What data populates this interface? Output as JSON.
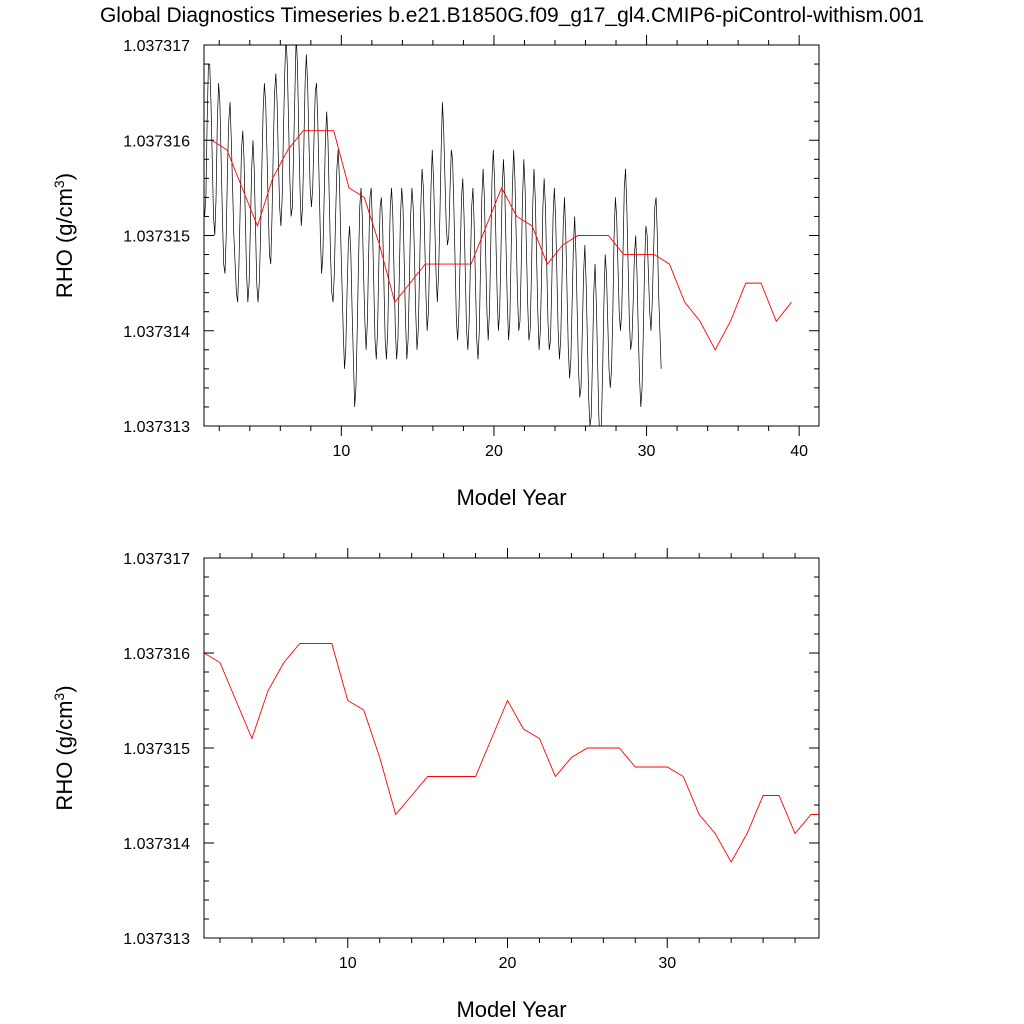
{
  "title": "Global Diagnostics Timeseries b.e21.B1850G.f09_g17_gl4.CMIP6-piControl-withism.001",
  "colors": {
    "monthly": "#000000",
    "annual": "#ff0000",
    "frame": "#000000",
    "background": "#ffffff"
  },
  "chart_data": [
    {
      "type": "line",
      "xlabel": "Model Year",
      "ylabel": "RHO (g/cm",
      "ylabel_sup": "3",
      "ylabel_suffix": ")",
      "xlim": [
        1,
        41.3
      ],
      "ylim": [
        1.037313,
        1.037317
      ],
      "xticks": [
        10,
        20,
        30,
        40
      ],
      "xtick_labels": [
        "10",
        "20",
        "30",
        "40"
      ],
      "yticks": [
        1.037313,
        1.037314,
        1.037315,
        1.037316,
        1.037317
      ],
      "ytick_labels": [
        "1.037313",
        "1.037314",
        "1.037315",
        "1.037316",
        "1.037317"
      ],
      "grid": false,
      "legend": "none",
      "series": [
        {
          "style": "monthly",
          "x_start": 1.04,
          "x_step": 0.0833333,
          "values": [
            1.0373152,
            1.0373154,
            1.0373162,
            1.0373168,
            1.0373168,
            1.0373164,
            1.0373158,
            1.0373152,
            1.037315,
            1.0373154,
            1.0373162,
            1.0373166,
            1.0373164,
            1.0373158,
            1.0373152,
            1.0373147,
            1.0373146,
            1.037315,
            1.0373157,
            1.0373162,
            1.0373164,
            1.037316,
            1.0373155,
            1.037315,
            1.0373147,
            1.0373144,
            1.0373143,
            1.0373147,
            1.0373153,
            1.0373159,
            1.0373161,
            1.0373158,
            1.0373152,
            1.0373146,
            1.0373143,
            1.0373145,
            1.0373151,
            1.0373157,
            1.037316,
            1.0373157,
            1.0373151,
            1.0373145,
            1.0373143,
            1.0373145,
            1.037315,
            1.0373157,
            1.0373163,
            1.0373166,
            1.0373164,
            1.0373159,
            1.0373153,
            1.0373148,
            1.0373147,
            1.0373152,
            1.0373159,
            1.0373165,
            1.0373167,
            1.0373164,
            1.0373158,
            1.0373153,
            1.0373151,
            1.0373154,
            1.0373161,
            1.0373167,
            1.0373171,
            1.0373168,
            1.0373162,
            1.0373156,
            1.0373152,
            1.0373153,
            1.0373159,
            1.0373165,
            1.0373171,
            1.0373168,
            1.0373161,
            1.0373155,
            1.0373151,
            1.0373153,
            1.0373159,
            1.0373166,
            1.0373169,
            1.0373166,
            1.037316,
            1.0373155,
            1.0373153,
            1.0373155,
            1.037316,
            1.0373165,
            1.0373166,
            1.0373162,
            1.0373156,
            1.037315,
            1.0373146,
            1.0373148,
            1.0373154,
            1.037316,
            1.0373163,
            1.037316,
            1.0373154,
            1.0373148,
            1.0373144,
            1.0373143,
            1.0373146,
            1.0373152,
            1.0373157,
            1.0373159,
            1.0373156,
            1.037315,
            1.0373145,
            1.037314,
            1.0373136,
            1.0373138,
            1.0373144,
            1.0373149,
            1.0373151,
            1.0373148,
            1.0373142,
            1.0373137,
            1.0373132,
            1.0373134,
            1.037314,
            1.0373147,
            1.0373153,
            1.0373155,
            1.0373152,
            1.0373146,
            1.0373141,
            1.0373138,
            1.0373141,
            1.0373148,
            1.0373154,
            1.0373155,
            1.0373151,
            1.0373145,
            1.0373139,
            1.0373137,
            1.037314,
            1.0373147,
            1.0373153,
            1.0373154,
            1.0373151,
            1.0373145,
            1.0373139,
            1.0373137,
            1.037314,
            1.0373147,
            1.0373153,
            1.0373155,
            1.0373152,
            1.0373146,
            1.037314,
            1.0373137,
            1.0373139,
            1.0373145,
            1.0373152,
            1.0373155,
            1.0373153,
            1.0373147,
            1.0373141,
            1.0373137,
            1.0373139,
            1.0373145,
            1.0373152,
            1.0373155,
            1.0373153,
            1.0373148,
            1.0373142,
            1.0373138,
            1.037314,
            1.0373146,
            1.0373153,
            1.0373157,
            1.0373155,
            1.037315,
            1.0373144,
            1.037314,
            1.0373142,
            1.0373148,
            1.0373155,
            1.0373159,
            1.0373156,
            1.0373151,
            1.0373146,
            1.0373143,
            1.0373146,
            1.0373152,
            1.0373159,
            1.0373164,
            1.0373161,
            1.0373156,
            1.0373151,
            1.0373149,
            1.037315,
            1.0373155,
            1.0373159,
            1.0373158,
            1.0373153,
            1.0373147,
            1.0373141,
            1.0373139,
            1.0373142,
            1.0373148,
            1.0373154,
            1.0373156,
            1.0373152,
            1.0373146,
            1.037314,
            1.0373138,
            1.0373141,
            1.0373147,
            1.0373153,
            1.0373155,
            1.0373151,
            1.0373145,
            1.0373139,
            1.0373137,
            1.037314,
            1.0373147,
            1.0373154,
            1.0373157,
            1.0373154,
            1.0373148,
            1.0373142,
            1.0373139,
            1.0373142,
            1.0373149,
            1.0373156,
            1.0373159,
            1.0373156,
            1.037315,
            1.0373144,
            1.037314,
            1.0373142,
            1.0373148,
            1.0373155,
            1.0373158,
            1.0373155,
            1.0373149,
            1.0373143,
            1.0373139,
            1.0373141,
            1.0373148,
            1.0373155,
            1.0373159,
            1.0373156,
            1.037315,
            1.0373144,
            1.037314,
            1.0373141,
            1.0373147,
            1.0373154,
            1.0373158,
            1.0373155,
            1.0373149,
            1.0373143,
            1.0373139,
            1.037314,
            1.0373146,
            1.0373153,
            1.0373157,
            1.0373154,
            1.0373148,
            1.0373142,
            1.0373138,
            1.037314,
            1.0373146,
            1.0373153,
            1.0373156,
            1.0373153,
            1.0373147,
            1.0373141,
            1.0373138,
            1.0373139,
            1.0373145,
            1.0373152,
            1.0373155,
            1.0373152,
            1.0373146,
            1.037314,
            1.0373137,
            1.0373139,
            1.0373145,
            1.0373151,
            1.0373154,
            1.037315,
            1.0373144,
            1.0373138,
            1.0373135,
            1.0373137,
            1.0373143,
            1.0373149,
            1.0373152,
            1.0373148,
            1.0373142,
            1.0373136,
            1.0373133,
            1.0373134,
            1.037314,
            1.0373146,
            1.0373149,
            1.0373145,
            1.0373139,
            1.0373133,
            1.037313,
            1.0373131,
            1.0373137,
            1.0373144,
            1.0373147,
            1.0373143,
            1.0373137,
            1.0373131,
            1.0373128,
            1.037313,
            1.0373136,
            1.0373143,
            1.0373148,
            1.0373146,
            1.0373141,
            1.0373136,
            1.0373134,
            1.0373136,
            1.0373142,
            1.037315,
            1.0373154,
            1.0373152,
            1.0373147,
            1.0373142,
            1.037314,
            1.0373142,
            1.0373148,
            1.0373155,
            1.0373157,
            1.0373153,
            1.0373147,
            1.0373141,
            1.0373138,
            1.0373139,
            1.0373143,
            1.0373148,
            1.037315,
            1.0373146,
            1.037314,
            1.0373135,
            1.0373132,
            1.0373134,
            1.037314,
            1.0373147,
            1.0373151,
            1.037315,
            1.0373146,
            1.0373142,
            1.037314,
            1.0373143,
            1.0373148,
            1.0373153,
            1.0373154,
            1.037315,
            1.0373144,
            1.037314,
            1.0373136
          ]
        },
        {
          "style": "annual",
          "x": [
            1.5,
            2.5,
            3.5,
            4.5,
            5.5,
            6.5,
            7.5,
            8.5,
            9.5,
            10.5,
            11.5,
            12.5,
            13.5,
            14.5,
            15.5,
            16.5,
            17.5,
            18.5,
            19.5,
            20.5,
            21.5,
            22.5,
            23.5,
            24.5,
            25.5,
            26.5,
            27.5,
            28.5,
            29.5,
            30.5,
            31.5,
            32.5,
            33.5,
            34.5,
            35.5,
            36.5,
            37.5,
            38.5,
            39.5
          ],
          "values": [
            1.037316,
            1.0373159,
            1.0373155,
            1.0373151,
            1.0373156,
            1.0373159,
            1.0373161,
            1.0373161,
            1.0373161,
            1.0373155,
            1.0373154,
            1.0373149,
            1.0373143,
            1.0373145,
            1.0373147,
            1.0373147,
            1.0373147,
            1.0373147,
            1.0373151,
            1.0373155,
            1.0373152,
            1.0373151,
            1.0373147,
            1.0373149,
            1.037315,
            1.037315,
            1.037315,
            1.0373148,
            1.0373148,
            1.0373148,
            1.0373147,
            1.0373143,
            1.0373141,
            1.0373138,
            1.0373141,
            1.0373145,
            1.0373145,
            1.0373141,
            1.0373143
          ]
        }
      ]
    },
    {
      "type": "line",
      "xlabel": "Model Year",
      "ylabel": "RHO (g/cm",
      "ylabel_sup": "3",
      "ylabel_suffix": ")",
      "xlim": [
        1,
        39.5
      ],
      "ylim": [
        1.037313,
        1.037317
      ],
      "xticks": [
        10,
        20,
        30
      ],
      "xtick_labels": [
        "10",
        "20",
        "30"
      ],
      "yticks": [
        1.037313,
        1.037314,
        1.037315,
        1.037316,
        1.037317
      ],
      "ytick_labels": [
        "1.037313",
        "1.037314",
        "1.037315",
        "1.037316",
        "1.037317"
      ],
      "grid": false,
      "legend": "none",
      "series": [
        {
          "style": "annual",
          "x": [
            1.0,
            2.0,
            3.0,
            4.0,
            5.0,
            6.0,
            7.0,
            8.0,
            9.0,
            10.0,
            11.0,
            12.0,
            13.0,
            14.0,
            15.0,
            16.0,
            17.0,
            18.0,
            19.0,
            20.0,
            21.0,
            22.0,
            23.0,
            24.0,
            25.0,
            26.0,
            27.0,
            28.0,
            29.0,
            30.0,
            31.0,
            32.0,
            33.0,
            34.0,
            35.0,
            36.0,
            37.0,
            38.0,
            39.0,
            39.5
          ],
          "values": [
            1.037316,
            1.0373159,
            1.0373155,
            1.0373151,
            1.0373156,
            1.0373159,
            1.0373161,
            1.0373161,
            1.0373161,
            1.0373155,
            1.0373154,
            1.0373149,
            1.0373143,
            1.0373145,
            1.0373147,
            1.0373147,
            1.0373147,
            1.0373147,
            1.0373151,
            1.0373155,
            1.0373152,
            1.0373151,
            1.0373147,
            1.0373149,
            1.037315,
            1.037315,
            1.037315,
            1.0373148,
            1.0373148,
            1.0373148,
            1.0373147,
            1.0373143,
            1.0373141,
            1.0373138,
            1.0373141,
            1.0373145,
            1.0373145,
            1.0373141,
            1.0373143,
            1.0373143
          ]
        }
      ]
    }
  ]
}
